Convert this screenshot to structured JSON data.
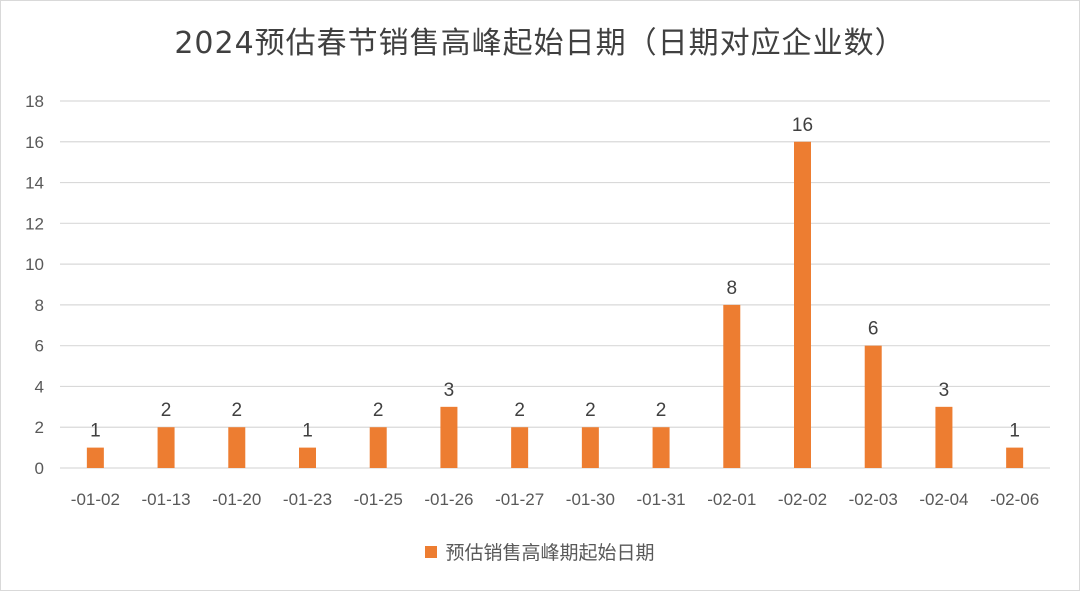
{
  "chart_data": {
    "type": "bar",
    "title": "2024预估春节销售高峰起始日期（日期对应企业数）",
    "categories": [
      "-01-02",
      "-01-13",
      "-01-20",
      "-01-23",
      "-01-25",
      "-01-26",
      "-01-27",
      "-01-30",
      "-01-31",
      "-02-01",
      "-02-02",
      "-02-03",
      "-02-04",
      "-02-06"
    ],
    "series": [
      {
        "name": "预估销售高峰期起始日期",
        "values": [
          1,
          2,
          2,
          1,
          2,
          3,
          2,
          2,
          2,
          8,
          16,
          6,
          3,
          1
        ]
      }
    ],
    "ylim": [
      0,
      18
    ],
    "yticks": [
      0,
      2,
      4,
      6,
      8,
      10,
      12,
      14,
      16,
      18
    ],
    "grid": true,
    "legend": "bottom",
    "bar_color": "#ED7D31"
  }
}
